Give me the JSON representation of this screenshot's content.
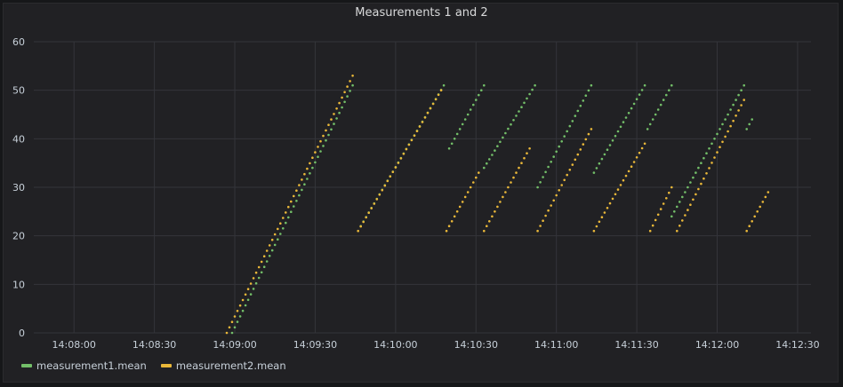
{
  "panel": {
    "title": "Measurements 1 and 2"
  },
  "chart_data": {
    "type": "scatter",
    "title": "Measurements 1 and 2",
    "xlabel": "",
    "ylabel": "",
    "ylim": [
      0,
      60
    ],
    "yticks": [
      0,
      10,
      20,
      30,
      40,
      50,
      60
    ],
    "xlim": [
      "14:07:45",
      "14:12:35"
    ],
    "xticks": [
      "14:08:00",
      "14:08:30",
      "14:09:00",
      "14:09:30",
      "14:10:00",
      "14:10:30",
      "14:11:00",
      "14:11:30",
      "14:12:00",
      "14:12:30"
    ],
    "grid": true,
    "legend": "bottom-left",
    "series": [
      {
        "name": "measurement1.mean",
        "color": "#73bf69",
        "segments": [
          {
            "start": "14:08:59",
            "end": "14:09:44",
            "y0": 0,
            "y1": 51
          },
          {
            "start": "14:09:47",
            "end": "14:10:18",
            "y0": 22,
            "y1": 51
          },
          {
            "start": "14:10:20",
            "end": "14:10:33",
            "y0": 38,
            "y1": 51
          },
          {
            "start": "14:10:33",
            "end": "14:10:52",
            "y0": 34,
            "y1": 51
          },
          {
            "start": "14:10:53",
            "end": "14:11:13",
            "y0": 30,
            "y1": 51
          },
          {
            "start": "14:11:14",
            "end": "14:11:33",
            "y0": 33,
            "y1": 51
          },
          {
            "start": "14:11:34",
            "end": "14:11:43",
            "y0": 42,
            "y1": 51
          },
          {
            "start": "14:11:43",
            "end": "14:12:10",
            "y0": 24,
            "y1": 51
          },
          {
            "start": "14:12:11",
            "end": "14:12:13",
            "y0": 42,
            "y1": 44
          }
        ]
      },
      {
        "name": "measurement2.mean",
        "color": "#eab839",
        "segments": [
          {
            "start": "14:08:57",
            "end": "14:09:44",
            "y0": 0,
            "y1": 53
          },
          {
            "start": "14:09:46",
            "end": "14:10:17",
            "y0": 21,
            "y1": 50
          },
          {
            "start": "14:10:19",
            "end": "14:10:31",
            "y0": 21,
            "y1": 33
          },
          {
            "start": "14:10:33",
            "end": "14:10:50",
            "y0": 21,
            "y1": 38
          },
          {
            "start": "14:10:53",
            "end": "14:11:13",
            "y0": 21,
            "y1": 42
          },
          {
            "start": "14:11:14",
            "end": "14:11:33",
            "y0": 21,
            "y1": 39
          },
          {
            "start": "14:11:35",
            "end": "14:11:43",
            "y0": 21,
            "y1": 30
          },
          {
            "start": "14:11:45",
            "end": "14:12:10",
            "y0": 21,
            "y1": 48
          },
          {
            "start": "14:12:11",
            "end": "14:12:19",
            "y0": 21,
            "y1": 29
          }
        ]
      }
    ]
  },
  "legend": [
    {
      "label": "measurement1.mean",
      "color": "#73bf69"
    },
    {
      "label": "measurement2.mean",
      "color": "#eab839"
    }
  ]
}
